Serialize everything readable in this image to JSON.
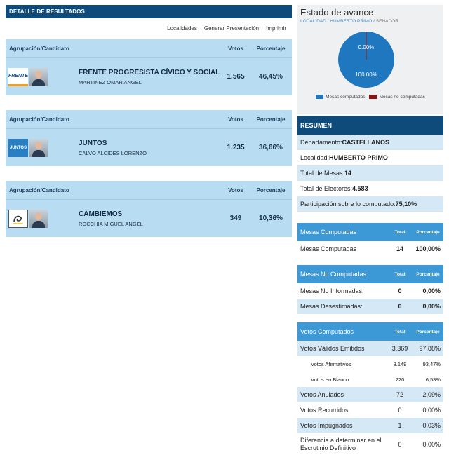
{
  "detail": {
    "header": "DETALLE DE RESULTADOS",
    "links": [
      "Localidades",
      "Generar Presentación",
      "Imprimir"
    ],
    "col_party": "Agrupación/Candidato",
    "col_votes": "Votos",
    "col_pct": "Porcentaje",
    "parties": [
      {
        "name": "FRENTE PROGRESISTA CÍVICO Y SOCIAL",
        "candidate": "MARTINEZ OMAR ANGEL",
        "votes": "1.565",
        "pct": "46,45%",
        "logo_text": "FRENTE",
        "logo_bg": "#ffffff",
        "logo_fg": "#1b4fa0"
      },
      {
        "name": "JUNTOS",
        "candidate": "CALVO ALCIDES LORENZO",
        "votes": "1.235",
        "pct": "36,66%",
        "logo_text": "JUNTOS",
        "logo_bg": "#2a7ec2",
        "logo_fg": "#ffffff"
      },
      {
        "name": "CAMBIEMOS",
        "candidate": "ROCCHIA MIGUEL ANGEL",
        "votes": "349",
        "pct": "10,36%",
        "logo_text": "",
        "logo_bg": "#ffffff",
        "logo_fg": "#333333"
      }
    ]
  },
  "estado": {
    "title": "Estado de avance",
    "breadcrumb_1": "LOCALIDAD",
    "breadcrumb_2": "HUMBERTO PRIMO",
    "breadcrumb_3": "SENADOR",
    "pie": {
      "computadas_pct": "100.00%",
      "no_computadas_pct": "0.00%",
      "computadas_fraction": 1.0
    },
    "legend": [
      "Mesas computadas",
      "Mesas no computadas"
    ],
    "colors": {
      "computadas": "#1f77c0",
      "no_computadas": "#8b1414"
    }
  },
  "resumen": {
    "header": "RESUMEN",
    "rows": [
      {
        "label": "Departamento: ",
        "value": "CASTELLANOS"
      },
      {
        "label": "Localidad: ",
        "value": "HUMBERTO PRIMO"
      },
      {
        "label": "Total de Mesas: ",
        "value": "14"
      },
      {
        "label": "Total de Electores: ",
        "value": "4.583"
      },
      {
        "label": "Participación sobre lo computado: ",
        "value": "75,10%"
      }
    ]
  },
  "mesas_computadas": {
    "title": "Mesas Computadas",
    "col_total": "Total",
    "col_pct": "Porcentaje",
    "rows": [
      {
        "label": "Mesas Computadas",
        "total": "14",
        "pct": "100,00%"
      }
    ]
  },
  "mesas_no_computadas": {
    "title": "Mesas No Computadas",
    "col_total": "Total",
    "col_pct": "Porcentaje",
    "rows": [
      {
        "label": "Mesas No Informadas:",
        "total": "0",
        "pct": "0,00%"
      },
      {
        "label": "Mesas Desestimadas:",
        "total": "0",
        "pct": "0,00%"
      }
    ]
  },
  "votos_computados": {
    "title": "Votos Computados",
    "col_total": "Total",
    "col_pct": "Porcentaje",
    "rows": [
      {
        "label": "Votos Válidos Emitidos",
        "total": "3.369",
        "pct": "97,88%"
      },
      {
        "label": "Votos Afirmativos",
        "total": "3.149",
        "pct": "93,47%"
      },
      {
        "label": "Votos en Blanco",
        "total": "220",
        "pct": "6,53%"
      },
      {
        "label": "Votos Anulados",
        "total": "72",
        "pct": "2,09%"
      },
      {
        "label": "Votos Recurridos",
        "total": "0",
        "pct": "0,00%"
      },
      {
        "label": "Votos Impugnados",
        "total": "1",
        "pct": "0,03%"
      },
      {
        "label": "Diferencia a determinar en el Escrutinio Definitivo",
        "total": "0",
        "pct": "0,00%"
      }
    ]
  }
}
